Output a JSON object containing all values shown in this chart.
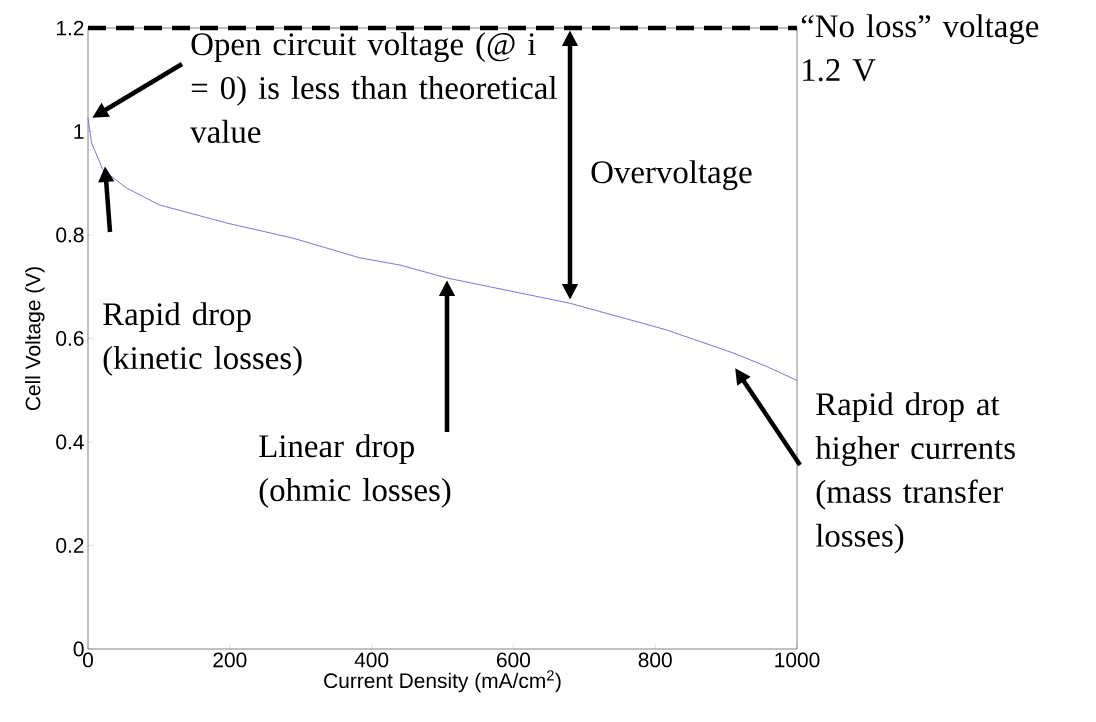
{
  "chart_data": {
    "type": "line",
    "xlabel": "Current Density (mA/cm$^{2}$)",
    "ylabel": "Cell Voltage (V)",
    "x": [
      0,
      5,
      21,
      54,
      101,
      196,
      289,
      383,
      440,
      506,
      680,
      815,
      910,
      957,
      1000
    ],
    "values": [
      1.026,
      0.978,
      0.926,
      0.891,
      0.858,
      0.823,
      0.794,
      0.756,
      0.742,
      0.717,
      0.668,
      0.617,
      0.572,
      0.546,
      0.519
    ],
    "color": "#6a6acd",
    "line_style": "solid",
    "marker": "none",
    "grid": false,
    "xlim": [
      0,
      1000
    ],
    "ylim": [
      0,
      1.2
    ],
    "xticks": [
      0,
      200,
      400,
      600,
      800,
      1000
    ],
    "yticks": [
      0,
      0.2,
      0.4,
      0.6,
      0.8,
      1,
      1.2
    ],
    "ref_lines": [
      {
        "axis": "y",
        "value": 1.2,
        "label": "“No loss” voltage 1.2 V",
        "color": "#000000",
        "line_style": "dashed"
      }
    ],
    "annotations": [
      "Open circuit voltage (@ i = 0) is less than theoretical value",
      "Rapid drop (kinetic losses)",
      "Linear drop (ohmic losses)",
      "Overvoltage",
      "Rapid drop at higher currents (mass transfer losses)"
    ]
  }
}
